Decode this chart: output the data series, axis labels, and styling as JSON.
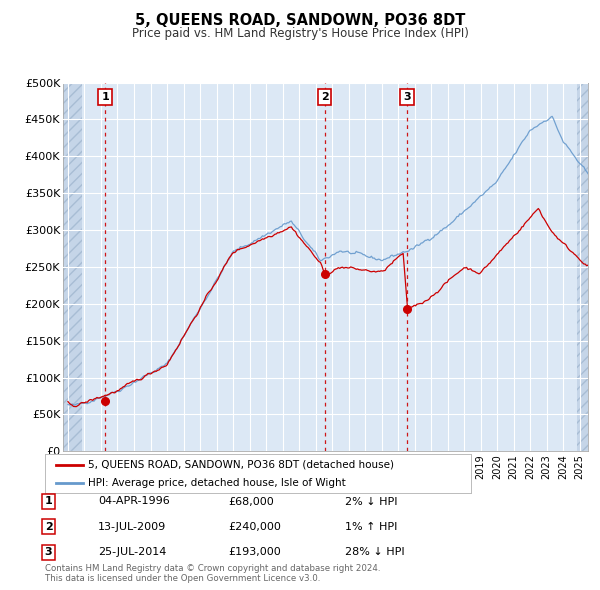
{
  "title": "5, QUEENS ROAD, SANDOWN, PO36 8DT",
  "subtitle": "Price paid vs. HM Land Registry's House Price Index (HPI)",
  "ylim": [
    0,
    500000
  ],
  "yticks": [
    0,
    50000,
    100000,
    150000,
    200000,
    250000,
    300000,
    350000,
    400000,
    450000,
    500000
  ],
  "ytick_labels": [
    "£0",
    "£50K",
    "£100K",
    "£150K",
    "£200K",
    "£250K",
    "£300K",
    "£350K",
    "£400K",
    "£450K",
    "£500K"
  ],
  "xlim_start": 1993.7,
  "xlim_end": 2025.5,
  "bg_color": "#ffffff",
  "plot_bg": "#dce8f5",
  "hatch_color": "#c5d5e8",
  "grid_color": "#ffffff",
  "sale_color": "#cc0000",
  "hpi_color": "#6699cc",
  "transactions": [
    {
      "label": "1",
      "date_year": 1996.27,
      "price": 68000,
      "date_str": "04-APR-1996",
      "price_str": "£68,000",
      "hpi_str": "2% ↓ HPI"
    },
    {
      "label": "2",
      "date_year": 2009.54,
      "price": 240000,
      "date_str": "13-JUL-2009",
      "price_str": "£240,000",
      "hpi_str": "1% ↑ HPI"
    },
    {
      "label": "3",
      "date_year": 2014.56,
      "price": 193000,
      "date_str": "25-JUL-2014",
      "price_str": "£193,000",
      "hpi_str": "28% ↓ HPI"
    }
  ],
  "legend_sale_label": "5, QUEENS ROAD, SANDOWN, PO36 8DT (detached house)",
  "legend_hpi_label": "HPI: Average price, detached house, Isle of Wight",
  "footer": "Contains HM Land Registry data © Crown copyright and database right 2024.\nThis data is licensed under the Open Government Licence v3.0."
}
